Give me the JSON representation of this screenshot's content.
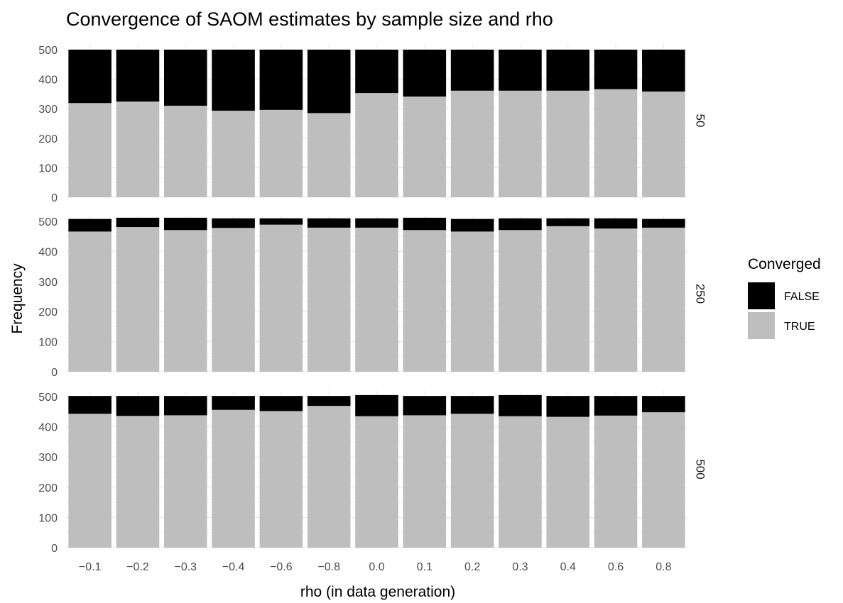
{
  "chart_data": {
    "type": "bar",
    "stacked": true,
    "title": "Convergence of SAOM estimates by sample size and rho",
    "xlabel": "rho (in data generation)",
    "ylabel": "Frequency",
    "ylim": [
      0,
      500
    ],
    "yticks": [
      0,
      100,
      200,
      300,
      400,
      500
    ],
    "grid": true,
    "legend": {
      "title": "Converged",
      "position": "right",
      "entries": [
        {
          "label": "FALSE",
          "color": "#000000"
        },
        {
          "label": "TRUE",
          "color": "#bebebe"
        }
      ]
    },
    "categories": [
      "−0.1",
      "−0.2",
      "−0.3",
      "−0.4",
      "−0.6",
      "−0.8",
      "0.0",
      "0.1",
      "0.2",
      "0.3",
      "0.4",
      "0.6",
      "0.8"
    ],
    "panels": [
      {
        "label": "50",
        "series": [
          {
            "name": "TRUE",
            "color": "#bebebe",
            "values": [
              319,
              324,
              310,
              293,
              296,
              285,
              353,
              341,
              361,
              361,
              361,
              366,
              358
            ]
          },
          {
            "name": "FALSE",
            "color": "#000000",
            "values": [
              181,
              176,
              190,
              207,
              204,
              215,
              147,
              159,
              139,
              139,
              139,
              134,
              142
            ]
          }
        ]
      },
      {
        "label": "250",
        "series": [
          {
            "name": "TRUE",
            "color": "#bebebe",
            "values": [
              466,
              481,
              471,
              478,
              489,
              479,
              479,
              471,
              466,
              471,
              484,
              476,
              479
            ]
          },
          {
            "name": "FALSE",
            "color": "#000000",
            "values": [
              42,
              31,
              41,
              32,
              21,
              31,
              31,
              41,
              42,
              39,
              26,
              34,
              29
            ]
          }
        ]
      },
      {
        "label": "500",
        "series": [
          {
            "name": "TRUE",
            "color": "#bebebe",
            "values": [
              443,
              436,
              438,
              456,
              452,
              469,
              435,
              438,
              443,
              435,
              433,
              437,
              448
            ]
          },
          {
            "name": "FALSE",
            "color": "#000000",
            "values": [
              59,
              66,
              64,
              46,
              50,
              33,
              70,
              64,
              59,
              70,
              69,
              65,
              54
            ]
          }
        ]
      }
    ]
  }
}
